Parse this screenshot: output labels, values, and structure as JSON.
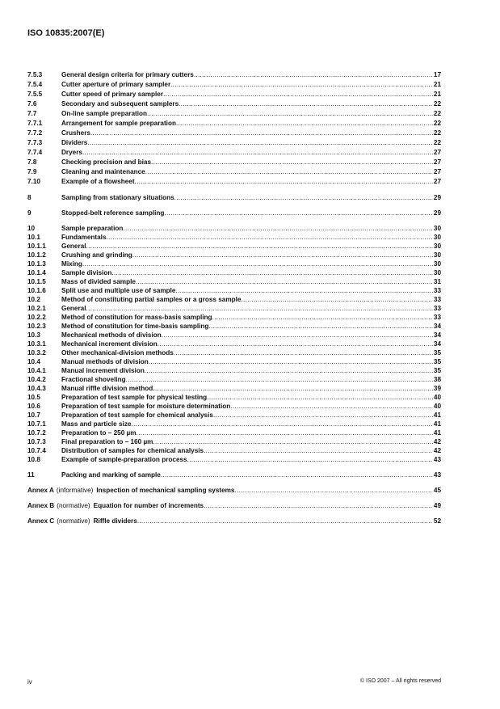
{
  "header": {
    "doc_id": "ISO 10835:2007(E)"
  },
  "toc": {
    "groups": [
      {
        "rows": [
          {
            "num": "7.5.3",
            "title": "General design criteria for primary cutters",
            "page": "17"
          },
          {
            "num": "7.5.4",
            "title": "Cutter aperture of primary sampler",
            "page": "21"
          },
          {
            "num": "7.5.5",
            "title": "Cutter speed of primary sampler",
            "page": "21"
          },
          {
            "num": "7.6",
            "title": "Secondary and subsequent samplers",
            "page": "22"
          },
          {
            "num": "7.7",
            "title": "On-line sample preparation",
            "page": "22"
          },
          {
            "num": "7.7.1",
            "title": "Arrangement for sample preparation",
            "page": "22"
          },
          {
            "num": "7.7.2",
            "title": "Crushers",
            "page": "22"
          },
          {
            "num": "7.7.3",
            "title": "Dividers",
            "page": "22"
          },
          {
            "num": "7.7.4",
            "title": "Dryers",
            "page": "27"
          },
          {
            "num": "7.8",
            "title": "Checking precision and bias",
            "page": "27"
          },
          {
            "num": "7.9",
            "title": "Cleaning and maintenance",
            "page": "27"
          },
          {
            "num": "7.10",
            "title": "Example of a flowsheet",
            "page": "27"
          }
        ]
      },
      {
        "rows": [
          {
            "num": "8",
            "title": "Sampling from stationary situations",
            "page": "29"
          }
        ]
      },
      {
        "rows": [
          {
            "num": "9",
            "title": "Stopped-belt reference sampling",
            "page": "29"
          }
        ]
      },
      {
        "rows": [
          {
            "num": "10",
            "title": "Sample preparation",
            "page": "30"
          },
          {
            "num": "10.1",
            "title": "Fundamentals",
            "page": "30"
          },
          {
            "num": "10.1.1",
            "title": "General",
            "page": "30"
          },
          {
            "num": "10.1.2",
            "title": "Crushing and grinding",
            "page": "30"
          },
          {
            "num": "10.1.3",
            "title": "Mixing",
            "page": "30"
          },
          {
            "num": "10.1.4",
            "title": "Sample division",
            "page": "30"
          },
          {
            "num": "10.1.5",
            "title": "Mass of divided sample",
            "page": "31"
          },
          {
            "num": "10.1.6",
            "title": "Split use and multiple use of sample",
            "page": "33"
          },
          {
            "num": "10.2",
            "title": "Method of constituting partial samples or a gross sample",
            "page": "33"
          },
          {
            "num": "10.2.1",
            "title": "General",
            "page": "33"
          },
          {
            "num": "10.2.2",
            "title": "Method of constitution for mass-basis sampling",
            "page": "33"
          },
          {
            "num": "10.2.3",
            "title": "Method of constitution for time-basis sampling",
            "page": "34"
          },
          {
            "num": "10.3",
            "title": "Mechanical methods of division",
            "page": "34"
          },
          {
            "num": "10.3.1",
            "title": "Mechanical increment division",
            "page": "34"
          },
          {
            "num": "10.3.2",
            "title": "Other mechanical-division methods",
            "page": "35"
          },
          {
            "num": "10.4",
            "title": "Manual methods of division",
            "page": "35"
          },
          {
            "num": "10.4.1",
            "title": "Manual increment division",
            "page": "35"
          },
          {
            "num": "10.4.2",
            "title": "Fractional shoveling",
            "page": "38"
          },
          {
            "num": "10.4.3",
            "title": "Manual riffle division method",
            "page": "39"
          },
          {
            "num": "10.5",
            "title": "Preparation of test sample for physical testing",
            "page": "40"
          },
          {
            "num": "10.6",
            "title": "Preparation of test sample for moisture determination",
            "page": "40"
          },
          {
            "num": "10.7",
            "title": "Preparation of test sample for chemical analysis",
            "page": "41"
          },
          {
            "num": "10.7.1",
            "title": "Mass and particle size",
            "page": "41"
          },
          {
            "num": "10.7.2",
            "title": "Preparation to – 250 µm",
            "page": "41"
          },
          {
            "num": "10.7.3",
            "title": "Final preparation to – 160 µm",
            "page": "42"
          },
          {
            "num": "10.7.4",
            "title": "Distribution of samples for chemical analysis",
            "page": "42"
          },
          {
            "num": "10.8",
            "title": "Example of sample-preparation process",
            "page": "43"
          }
        ]
      },
      {
        "rows": [
          {
            "num": "11",
            "title": "Packing and marking of sample",
            "page": "43"
          }
        ]
      }
    ],
    "annexes": [
      {
        "label": "Annex A",
        "kind": "(informative)",
        "title": "Inspection of mechanical sampling systems",
        "page": "45"
      },
      {
        "label": "Annex B",
        "kind": "(normative)",
        "title": "Equation for number of increments",
        "page": "49"
      },
      {
        "label": "Annex C",
        "kind": "(normative)",
        "title": "Riffle dividers",
        "page": "52"
      }
    ]
  },
  "footer": {
    "page_number": "iv",
    "copyright": "© ISO 2007 – All rights reserved"
  }
}
